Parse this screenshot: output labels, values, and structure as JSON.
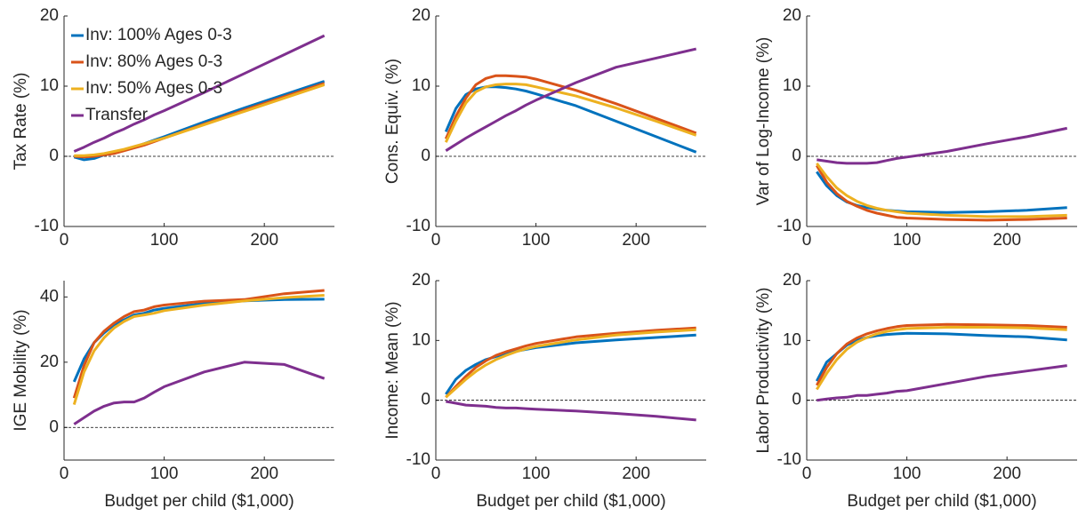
{
  "chart_data": [
    {
      "type": "line",
      "ylabel": "Tax Rate (%)",
      "legend": "upper left",
      "x": [
        10,
        20,
        30,
        40,
        50,
        60,
        70,
        80,
        90,
        100,
        140,
        180,
        220,
        260
      ],
      "xlim": [
        0,
        270
      ],
      "xticks": [
        0,
        100,
        200
      ],
      "ylim": [
        -10,
        20
      ],
      "yticks": [
        -10,
        0,
        10,
        20
      ],
      "hline": 0,
      "series": [
        {
          "name": "Inv: 100% Ages 0-3",
          "color": "#0072bd",
          "values": [
            -0.1,
            -0.5,
            -0.3,
            0.2,
            0.5,
            0.9,
            1.3,
            1.8,
            2.3,
            2.8,
            4.9,
            6.9,
            8.8,
            10.7
          ]
        },
        {
          "name": "Inv: 80% Ages 0-3",
          "color": "#d95319",
          "values": [
            0,
            -0.1,
            0,
            0.2,
            0.4,
            0.8,
            1.2,
            1.6,
            2.1,
            2.6,
            4.6,
            6.6,
            8.5,
            10.4
          ]
        },
        {
          "name": "Inv: 50% Ages 0-3",
          "color": "#edb120",
          "values": [
            0.1,
            0.1,
            0.2,
            0.4,
            0.7,
            1.0,
            1.4,
            1.8,
            2.2,
            2.6,
            4.5,
            6.4,
            8.3,
            10.2
          ]
        },
        {
          "name": "Transfer",
          "color": "#7e2f8e",
          "values": [
            0.7,
            1.3,
            2.0,
            2.6,
            3.3,
            3.9,
            4.6,
            5.2,
            5.9,
            6.5,
            9.1,
            11.8,
            14.5,
            17.2
          ]
        }
      ]
    },
    {
      "type": "line",
      "ylabel": "Cons. Equiv. (%)",
      "x": [
        10,
        20,
        30,
        40,
        50,
        60,
        70,
        80,
        90,
        100,
        140,
        180,
        220,
        260
      ],
      "xlim": [
        0,
        270
      ],
      "xticks": [
        0,
        100,
        200
      ],
      "ylim": [
        -10,
        20
      ],
      "yticks": [
        -10,
        0,
        10,
        20
      ],
      "hline": 0,
      "series": [
        {
          "color": "#0072bd",
          "values": [
            3.5,
            6.8,
            8.8,
            9.6,
            9.9,
            9.9,
            9.8,
            9.6,
            9.3,
            8.9,
            7.2,
            5.0,
            2.8,
            0.6
          ]
        },
        {
          "color": "#d95319",
          "values": [
            2.5,
            5.7,
            8.3,
            10.2,
            11.1,
            11.5,
            11.5,
            11.4,
            11.3,
            11.0,
            9.4,
            7.5,
            5.4,
            3.3
          ]
        },
        {
          "color": "#edb120",
          "values": [
            2.0,
            5.0,
            7.6,
            9.2,
            9.9,
            10.2,
            10.3,
            10.3,
            10.2,
            9.9,
            8.6,
            6.9,
            5.0,
            3.0
          ]
        },
        {
          "color": "#7e2f8e",
          "values": [
            0.8,
            1.7,
            2.6,
            3.4,
            4.2,
            5.0,
            5.8,
            6.5,
            7.3,
            8.0,
            10.5,
            12.7,
            14.0,
            15.3
          ]
        }
      ]
    },
    {
      "type": "line",
      "ylabel": "Var of Log-Income (%)",
      "x": [
        10,
        20,
        30,
        40,
        50,
        60,
        70,
        80,
        90,
        100,
        140,
        180,
        220,
        260
      ],
      "xlim": [
        0,
        270
      ],
      "xticks": [
        0,
        100,
        200
      ],
      "ylim": [
        -10,
        20
      ],
      "yticks": [
        -10,
        0,
        10,
        20
      ],
      "hline": 0,
      "series": [
        {
          "color": "#0072bd",
          "values": [
            -2.2,
            -4.2,
            -5.6,
            -6.5,
            -7.0,
            -7.3,
            -7.5,
            -7.7,
            -7.8,
            -7.9,
            -8.0,
            -7.9,
            -7.7,
            -7.3
          ]
        },
        {
          "color": "#d95319",
          "values": [
            -1.3,
            -3.7,
            -5.3,
            -6.4,
            -7.1,
            -7.7,
            -8.1,
            -8.4,
            -8.7,
            -8.8,
            -9.0,
            -9.1,
            -9.0,
            -8.8
          ]
        },
        {
          "color": "#edb120",
          "values": [
            -1.0,
            -2.9,
            -4.5,
            -5.6,
            -6.4,
            -7.0,
            -7.4,
            -7.7,
            -7.9,
            -8.1,
            -8.4,
            -8.6,
            -8.6,
            -8.4
          ]
        },
        {
          "color": "#7e2f8e",
          "values": [
            -0.5,
            -0.7,
            -0.9,
            -1.0,
            -1.0,
            -1.0,
            -0.9,
            -0.6,
            -0.3,
            -0.1,
            0.7,
            1.8,
            2.8,
            4.0
          ]
        }
      ]
    },
    {
      "type": "line",
      "ylabel": "IGE Mobility (%)",
      "xlabel": "Budget per child ($1,000)",
      "x": [
        10,
        20,
        30,
        40,
        50,
        60,
        70,
        80,
        90,
        100,
        140,
        180,
        220,
        260
      ],
      "xlim": [
        0,
        270
      ],
      "xticks": [
        0,
        100,
        200
      ],
      "ylim": [
        -10,
        45
      ],
      "yticks": [
        0,
        20,
        40
      ],
      "hline": 0,
      "series": [
        {
          "color": "#0072bd",
          "values": [
            14,
            21,
            26,
            29,
            31.5,
            33,
            34.5,
            35,
            36,
            36.5,
            38,
            38.8,
            39.2,
            39.3
          ]
        },
        {
          "color": "#d95319",
          "values": [
            9,
            19,
            26,
            29.5,
            32,
            34,
            35.5,
            36,
            37,
            37.5,
            38.7,
            39.2,
            41,
            42
          ]
        },
        {
          "color": "#edb120",
          "values": [
            7,
            17,
            23.5,
            27.5,
            30.5,
            32.5,
            34,
            34.5,
            35,
            35.8,
            37.5,
            38.8,
            39.8,
            40.5
          ]
        },
        {
          "color": "#7e2f8e",
          "values": [
            1,
            3,
            5,
            6.5,
            7.5,
            7.8,
            7.8,
            9,
            10.8,
            12.5,
            17,
            20,
            19.3,
            15
          ]
        }
      ]
    },
    {
      "type": "line",
      "ylabel": "Income: Mean (%)",
      "xlabel": "Budget per child ($1,000)",
      "x": [
        10,
        20,
        30,
        40,
        50,
        60,
        70,
        80,
        90,
        100,
        140,
        180,
        220,
        260
      ],
      "xlim": [
        0,
        270
      ],
      "xticks": [
        0,
        100,
        200
      ],
      "ylim": [
        -10,
        20
      ],
      "yticks": [
        -10,
        0,
        10,
        20
      ],
      "hline": 0,
      "series": [
        {
          "color": "#0072bd",
          "values": [
            1,
            3.5,
            5,
            6,
            6.8,
            7.3,
            7.8,
            8.2,
            8.5,
            8.8,
            9.6,
            10.1,
            10.5,
            10.9
          ]
        },
        {
          "color": "#d95319",
          "values": [
            0.5,
            2.3,
            4,
            5.5,
            6.6,
            7.5,
            8.1,
            8.6,
            9.1,
            9.5,
            10.6,
            11.2,
            11.7,
            12.1
          ]
        },
        {
          "color": "#edb120",
          "values": [
            0.5,
            2,
            3.5,
            4.8,
            5.9,
            6.8,
            7.5,
            8.1,
            8.6,
            9.0,
            10.1,
            10.9,
            11.4,
            11.8
          ]
        },
        {
          "color": "#7e2f8e",
          "values": [
            -0.2,
            -0.5,
            -0.8,
            -0.9,
            -1.0,
            -1.2,
            -1.3,
            -1.3,
            -1.4,
            -1.5,
            -1.8,
            -2.2,
            -2.7,
            -3.3
          ]
        }
      ]
    },
    {
      "type": "line",
      "ylabel": "Labor Productivity (%)",
      "xlabel": "Budget per child ($1,000)",
      "x": [
        10,
        20,
        30,
        40,
        50,
        60,
        70,
        80,
        90,
        100,
        140,
        180,
        220,
        260
      ],
      "xlim": [
        0,
        270
      ],
      "xticks": [
        0,
        100,
        200
      ],
      "ylim": [
        -10,
        20
      ],
      "yticks": [
        -10,
        0,
        10,
        20
      ],
      "hline": 0,
      "series": [
        {
          "color": "#0072bd",
          "values": [
            3.2,
            6.4,
            7.8,
            9.2,
            10,
            10.5,
            10.8,
            11,
            11.1,
            11.2,
            11.1,
            10.8,
            10.6,
            10.1
          ]
        },
        {
          "color": "#d95319",
          "values": [
            2.5,
            5.5,
            7.8,
            9.4,
            10.4,
            11.1,
            11.6,
            12.0,
            12.3,
            12.5,
            12.7,
            12.6,
            12.5,
            12.2
          ]
        },
        {
          "color": "#edb120",
          "values": [
            1.8,
            4.5,
            6.8,
            8.5,
            9.7,
            10.5,
            11.1,
            11.5,
            11.8,
            12.0,
            12.2,
            12.2,
            12.1,
            11.8
          ]
        },
        {
          "color": "#7e2f8e",
          "values": [
            0,
            0.2,
            0.4,
            0.5,
            0.8,
            0.8,
            1.0,
            1.2,
            1.5,
            1.6,
            2.8,
            4.0,
            4.9,
            5.8
          ]
        }
      ]
    }
  ]
}
